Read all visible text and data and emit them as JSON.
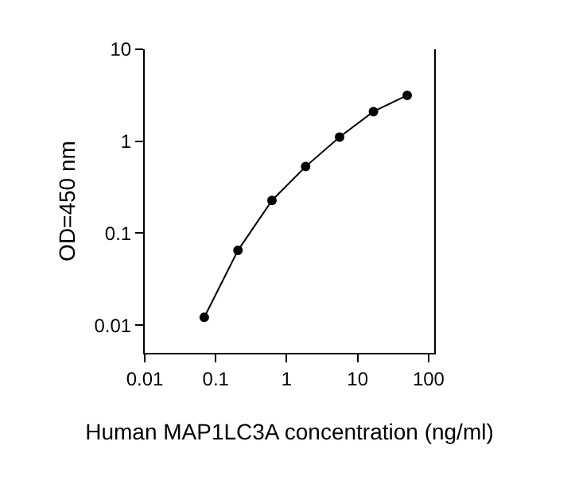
{
  "chart_data": {
    "type": "line",
    "xlabel": "Human MAP1LC3A concentration (ng/ml)",
    "ylabel": "OD=450 nm",
    "x": [
      0.069,
      0.206,
      0.62,
      1.85,
      5.56,
      16.7,
      50
    ],
    "series": [
      {
        "color": "#000000",
        "values": [
          0.0122,
          0.065,
          0.227,
          0.53,
          1.11,
          2.1,
          3.16
        ]
      }
    ],
    "log": "xy",
    "xlim": [
      0.01,
      120
    ],
    "ylim": [
      0.005,
      10
    ],
    "xticks": [
      0.01,
      0.1,
      1,
      10,
      100
    ],
    "yticks": [
      0.01,
      0.1,
      1,
      10
    ],
    "marker": "circle",
    "line_style": "solid"
  }
}
